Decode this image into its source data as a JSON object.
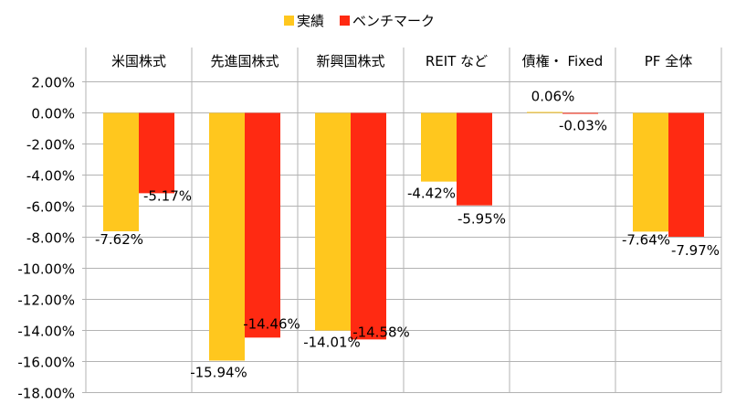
{
  "chart_data": {
    "type": "bar",
    "categories": [
      "米国株式",
      "先進国株式",
      "新興国株式",
      "REIT など",
      "債権・ Fixed",
      "PF 全体"
    ],
    "series": [
      {
        "name": "実績",
        "values": [
          -7.62,
          -15.94,
          -14.01,
          -4.42,
          0.06,
          -7.64
        ],
        "labels": [
          "-7.62%",
          "-15.94%",
          "-14.01%",
          "-4.42%",
          "0.06%",
          "-7.64%"
        ],
        "color": "#FFC71E"
      },
      {
        "name": "ベンチマーク",
        "values": [
          -5.17,
          -14.46,
          -14.58,
          -5.95,
          -0.03,
          -7.97
        ],
        "labels": [
          "-5.17%",
          "-14.46%",
          "-14.58%",
          "-5.95%",
          "-0.03%",
          "-7.97%"
        ],
        "color": "#FF2A12"
      }
    ],
    "ylim": [
      -18,
      2
    ],
    "yticks": [
      2,
      0,
      -2,
      -4,
      -6,
      -8,
      -10,
      -12,
      -14,
      -16,
      -18
    ],
    "ytick_labels": [
      "2.00%",
      "0.00%",
      "-2.00%",
      "-4.00%",
      "-6.00%",
      "-8.00%",
      "-10.00%",
      "-12.00%",
      "-14.00%",
      "-16.00%",
      "-18.00%"
    ],
    "legend_position": "top-center",
    "category_labels_position": "top",
    "grid": "horizontal and vertical category separators"
  }
}
